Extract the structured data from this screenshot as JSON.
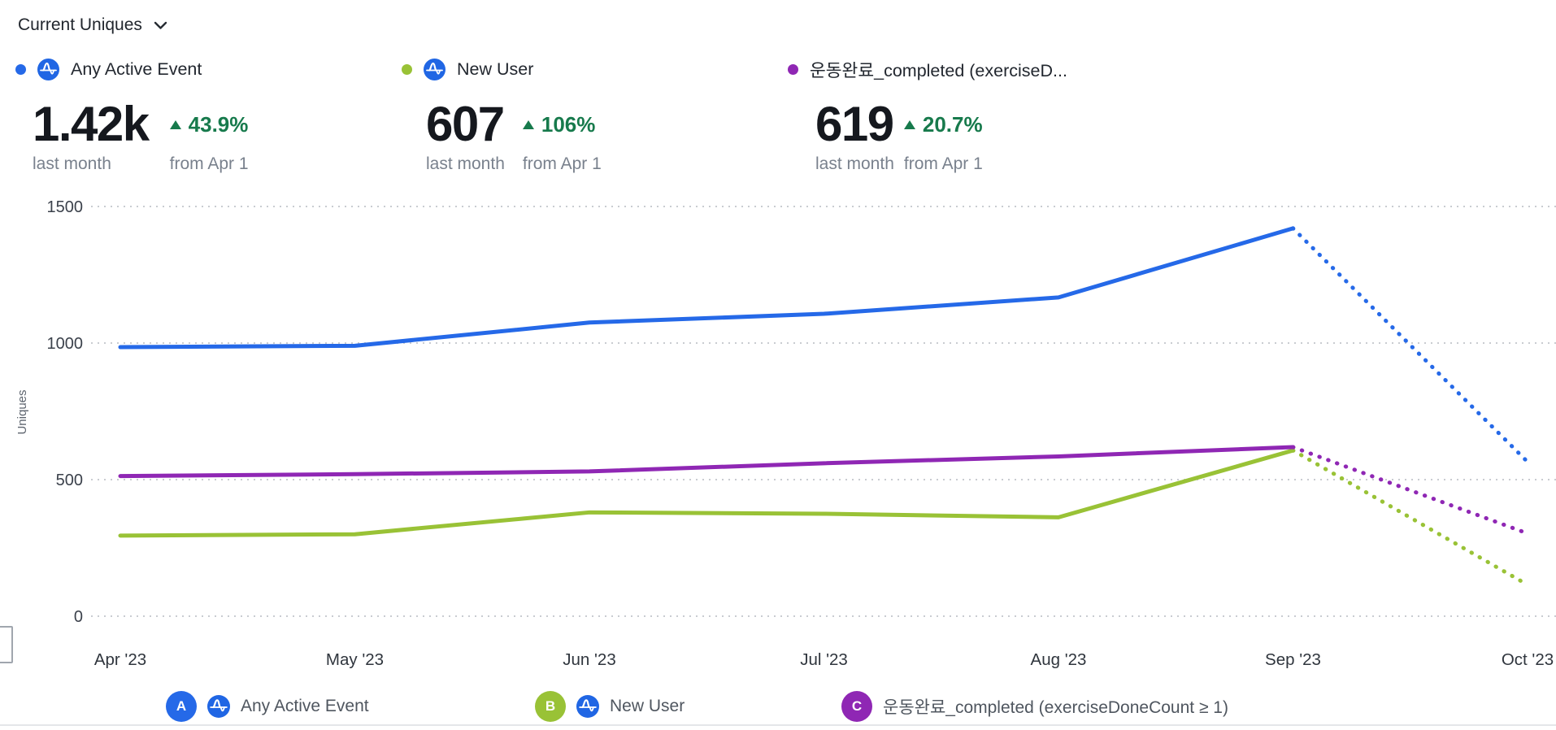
{
  "header": {
    "metric_selector_label": "Current Uniques"
  },
  "colors": {
    "series_blue": "#2569e8",
    "series_green": "#99c236",
    "series_purple": "#8f27b4",
    "positive_delta_green": "#177a4c"
  },
  "cards": [
    {
      "letter": "A",
      "color": "#2569e8",
      "has_amplitude_icon": true,
      "title": "Any Active Event",
      "value": "1.42k",
      "value_sub": "last month",
      "delta": "43.9%",
      "delta_sub": "from Apr 1"
    },
    {
      "letter": "B",
      "color": "#99c236",
      "has_amplitude_icon": true,
      "title": "New User",
      "value": "607",
      "value_sub": "last month",
      "delta": "106%",
      "delta_sub": "from Apr 1"
    },
    {
      "letter": "C",
      "color": "#8f27b4",
      "has_amplitude_icon": false,
      "title": "운동완료_completed (exerciseD...",
      "value": "619",
      "value_sub": "last month",
      "delta": "20.7%",
      "delta_sub": "from Apr 1"
    }
  ],
  "chart_data": {
    "type": "line",
    "title": "Current Uniques",
    "ylabel": "Uniques",
    "xlabel": "",
    "x": [
      "Apr '23",
      "May '23",
      "Jun '23",
      "Jul '23",
      "Aug '23",
      "Sep '23",
      "Oct '23"
    ],
    "series": [
      {
        "name": "Any Active Event",
        "color": "#2569e8",
        "values": [
          985,
          990,
          1075,
          1107,
          1167,
          1420,
          565
        ]
      },
      {
        "name": "New User",
        "color": "#99c236",
        "values": [
          295,
          300,
          380,
          375,
          362,
          607,
          115
        ]
      },
      {
        "name": "운동완료_completed (exerciseDoneCount ≥ 1)",
        "color": "#8f27b4",
        "values": [
          513,
          520,
          530,
          560,
          585,
          619,
          303
        ]
      }
    ],
    "ylim": [
      0,
      1500
    ],
    "yticks": [
      0,
      500,
      1000,
      1500
    ],
    "grid": "dotted horizontal gridlines at each y tick",
    "legend_position": "bottom",
    "projection_note": "final segment (Sep '23 to Oct '23) is dotted = incomplete current month"
  },
  "legend": [
    {
      "badge": "A",
      "badge_color": "#2569e8",
      "has_amplitude_icon": true,
      "label": "Any Active Event"
    },
    {
      "badge": "B",
      "badge_color": "#99c236",
      "has_amplitude_icon": true,
      "label": "New User"
    },
    {
      "badge": "C",
      "badge_color": "#8f27b4",
      "has_amplitude_icon": false,
      "label": "운동완료_completed (exerciseDoneCount ≥ 1)"
    }
  ]
}
